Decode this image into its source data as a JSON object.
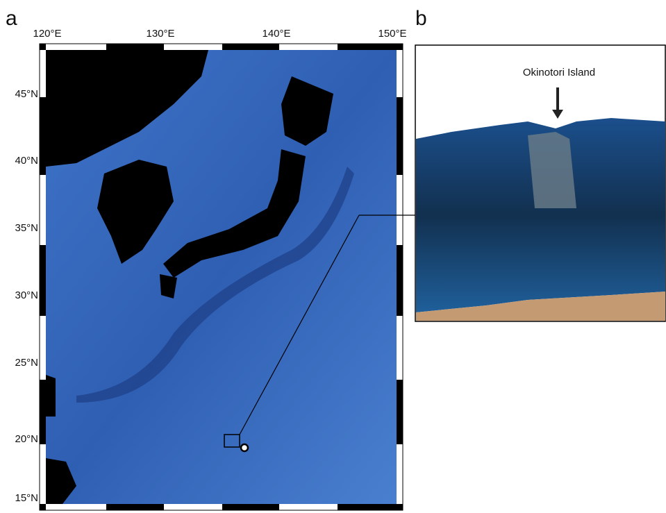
{
  "panels": [
    {
      "label": "a",
      "lon_labels": [
        "120°E",
        "130°E",
        "140°E",
        "150°E"
      ],
      "lat_labels": [
        "45°N",
        "40°N",
        "35°N",
        "30°N",
        "25°N",
        "20°N",
        "15°N"
      ]
    },
    {
      "label": "b",
      "annotation": "Okinotori Island"
    }
  ]
}
